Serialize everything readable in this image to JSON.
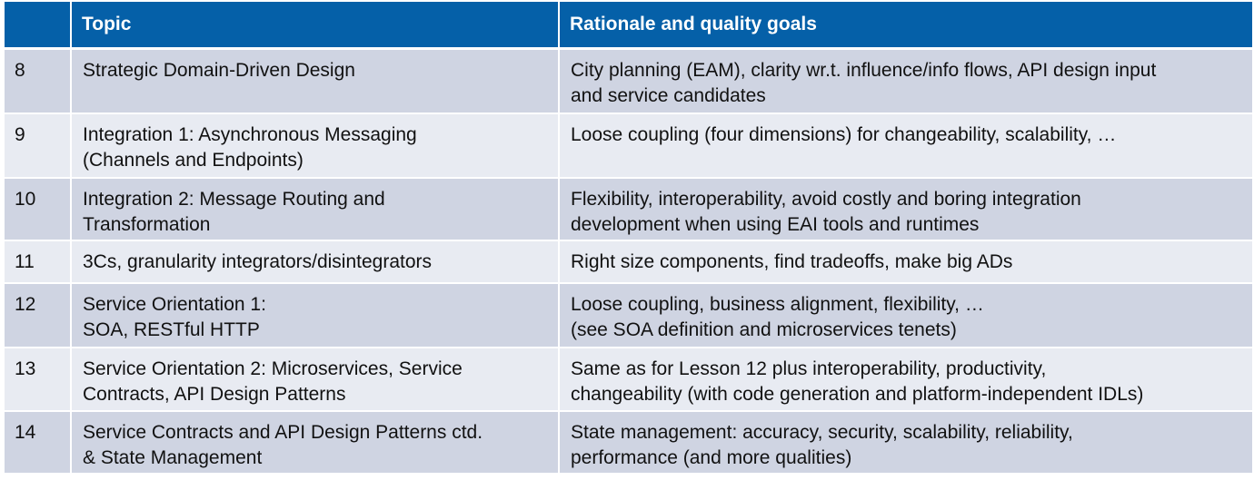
{
  "header": {
    "col_number": "",
    "col_topic": "Topic",
    "col_rationale": "Rationale and quality goals"
  },
  "rows": [
    {
      "number": "8",
      "topic": "Strategic Domain-Driven Design",
      "rationale": "City planning (EAM), clarity wr.t. influence/info flows, API design input\nand service candidates"
    },
    {
      "number": "9",
      "topic": "Integration 1: Asynchronous Messaging\n(Channels and Endpoints)",
      "rationale": "Loose coupling (four dimensions) for changeability, scalability, …"
    },
    {
      "number": "10",
      "topic": "Integration 2: Message Routing and\nTransformation",
      "rationale": "Flexibility, interoperability, avoid costly and boring integration\ndevelopment when using EAI tools and runtimes"
    },
    {
      "number": "11",
      "topic": "3Cs, granularity integrators/disintegrators",
      "rationale": "Right size components, find tradeoffs, make big ADs"
    },
    {
      "number": "12",
      "topic": "Service Orientation 1:\nSOA, RESTful HTTP",
      "rationale": "Loose coupling, business alignment, flexibility, …\n(see SOA definition and microservices tenets)"
    },
    {
      "number": "13",
      "topic": "Service Orientation 2: Microservices, Service\nContracts, API Design Patterns",
      "rationale": "Same as for Lesson 12 plus interoperability, productivity,\nchangeability (with code generation and platform-independent IDLs)"
    },
    {
      "number": "14",
      "topic": "Service Contracts and API Design Patterns ctd.\n& State Management",
      "rationale": "State management: accuracy, security, scalability, reliability,\nperformance (and more qualities)"
    }
  ]
}
